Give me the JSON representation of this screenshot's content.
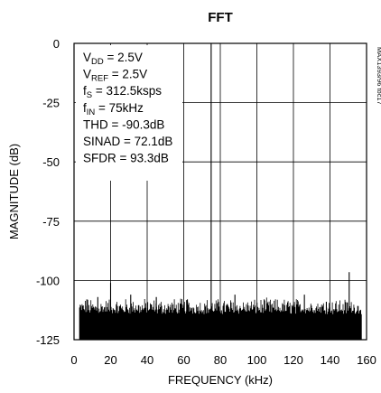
{
  "chart_data": {
    "type": "line",
    "title": "FFT",
    "xlabel": "FREQUENCY (kHz)",
    "ylabel": "MAGNITUDE (dB)",
    "xlim": [
      0,
      160
    ],
    "ylim": [
      -125,
      0
    ],
    "x_ticks": [
      "0",
      "20",
      "40",
      "60",
      "80",
      "100",
      "120",
      "140",
      "160"
    ],
    "y_ticks": [
      "0",
      "-25",
      "-50",
      "-75",
      "-100",
      "-125"
    ],
    "grid": true,
    "side_id": "MAX1393/96 toc17",
    "conditions": [
      {
        "base": "V",
        "sub": "DD",
        "rest": " = 2.5V"
      },
      {
        "base": "V",
        "sub": "REF",
        "rest": " = 2.5V"
      },
      {
        "base": "f",
        "sub": "S",
        "rest": " = 312.5ksps"
      },
      {
        "base": "f",
        "sub": "IN",
        "rest": " = 75kHz"
      },
      {
        "base": "THD = -90.3dB",
        "sub": "",
        "rest": ""
      },
      {
        "base": "SINAD = 72.1dB",
        "sub": "",
        "rest": ""
      },
      {
        "base": "SFDR = 93.3dB",
        "sub": "",
        "rest": ""
      }
    ],
    "series": [
      {
        "peaks": [
          {
            "x": 75,
            "y": 0
          },
          {
            "x": 150.5,
            "y": -96.5
          },
          {
            "x": 20,
            "y": -101
          },
          {
            "x": 13,
            "y": -107
          },
          {
            "x": 7,
            "y": -108
          },
          {
            "x": 31,
            "y": -106
          },
          {
            "x": 45,
            "y": -107
          },
          {
            "x": 62,
            "y": -108
          },
          {
            "x": 88,
            "y": -106
          },
          {
            "x": 104,
            "y": -108
          },
          {
            "x": 126,
            "y": -106
          },
          {
            "x": 138,
            "y": -109
          }
        ],
        "noise_floor_top": -112,
        "noise_floor_bottom": -125,
        "noise_range": [
          3,
          157.5
        ]
      }
    ]
  }
}
